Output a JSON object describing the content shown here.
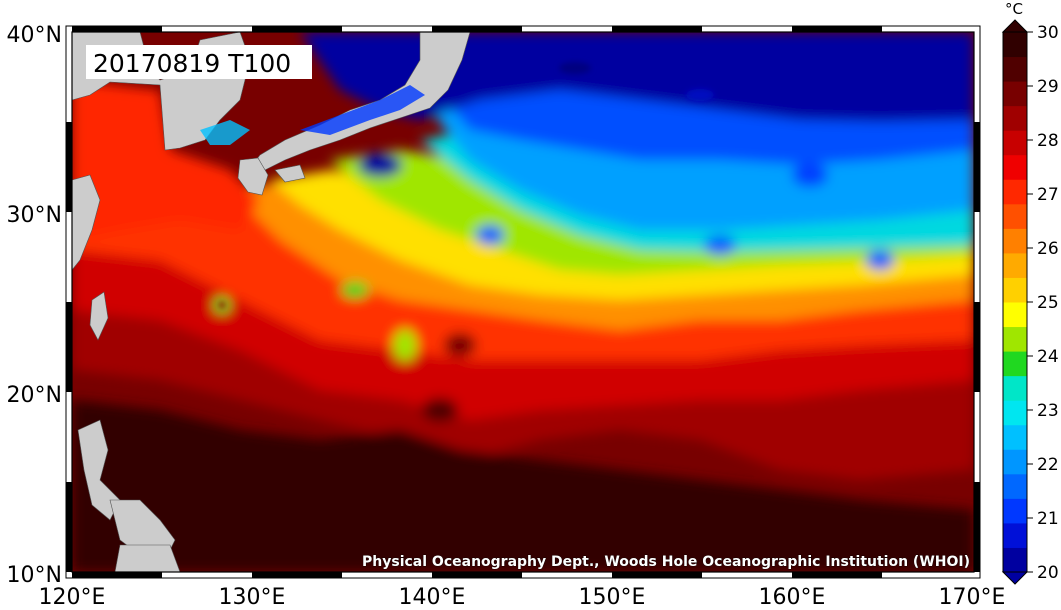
{
  "map": {
    "date_label": "20170819 T100",
    "credit": "Physical Oceanography Dept., Woods Hole Oceanographic Institution (WHOI)",
    "lon_ticks": [
      "120°E",
      "130°E",
      "140°E",
      "150°E",
      "160°E",
      "170°E"
    ],
    "lat_ticks": [
      "40°N",
      "30°N",
      "20°N",
      "10°N"
    ],
    "extent": {
      "lon_min": 120,
      "lon_max": 170,
      "lat_min": 10,
      "lat_max": 40
    },
    "land_color": "#cccccc"
  },
  "colorbar": {
    "unit": "°C",
    "min": 20,
    "max": 30,
    "tick_labels": [
      "30",
      "29",
      "28",
      "27",
      "26",
      "25",
      "24",
      "23",
      "22",
      "21",
      "20"
    ],
    "colors": [
      "#0000a0",
      "#0010d8",
      "#0038ff",
      "#0068ff",
      "#0096ff",
      "#00c0ff",
      "#00e6f0",
      "#00e6c8",
      "#20d820",
      "#a0e600",
      "#ffff00",
      "#ffd000",
      "#ffaa00",
      "#ff8000",
      "#ff5000",
      "#ff2800",
      "#f00000",
      "#c80000",
      "#a00000",
      "#780000",
      "#500000",
      "#300000"
    ]
  }
}
